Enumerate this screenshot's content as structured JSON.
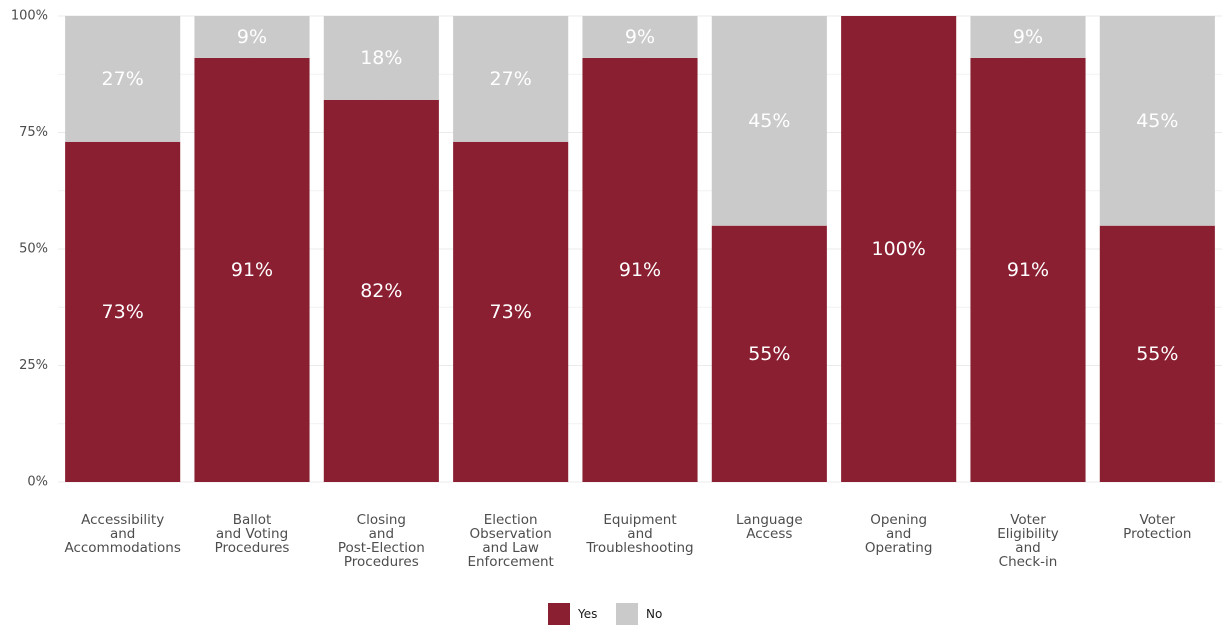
{
  "chart_data": {
    "type": "bar",
    "stacked": true,
    "percent": true,
    "categories": [
      [
        "Accessibility",
        "and",
        "Accommodations"
      ],
      [
        "Ballot",
        "and Voting",
        "Procedures"
      ],
      [
        "Closing",
        "and",
        "Post-Election",
        "Procedures"
      ],
      [
        "Election",
        "Observation",
        "and Law",
        "Enforcement"
      ],
      [
        "Equipment",
        "and",
        "Troubleshooting"
      ],
      [
        "Language",
        "Access"
      ],
      [
        "Opening",
        "and",
        "Operating"
      ],
      [
        "Voter",
        "Eligibility",
        "and",
        "Check-in"
      ],
      [
        "Voter",
        "Protection"
      ]
    ],
    "series": [
      {
        "name": "Yes",
        "color": "#8b1f32",
        "values": [
          73,
          91,
          82,
          73,
          91,
          55,
          100,
          91,
          55
        ]
      },
      {
        "name": "No",
        "color": "#cacaca",
        "values": [
          27,
          9,
          18,
          27,
          9,
          45,
          0,
          9,
          45
        ]
      }
    ],
    "ylim": [
      0,
      100
    ],
    "y_ticks": [
      "0%",
      "25%",
      "50%",
      "75%",
      "100%"
    ],
    "y_tick_values": [
      0,
      25,
      50,
      75,
      100
    ],
    "grid": true,
    "legend_position": "bottom",
    "label_suffix": "%"
  }
}
